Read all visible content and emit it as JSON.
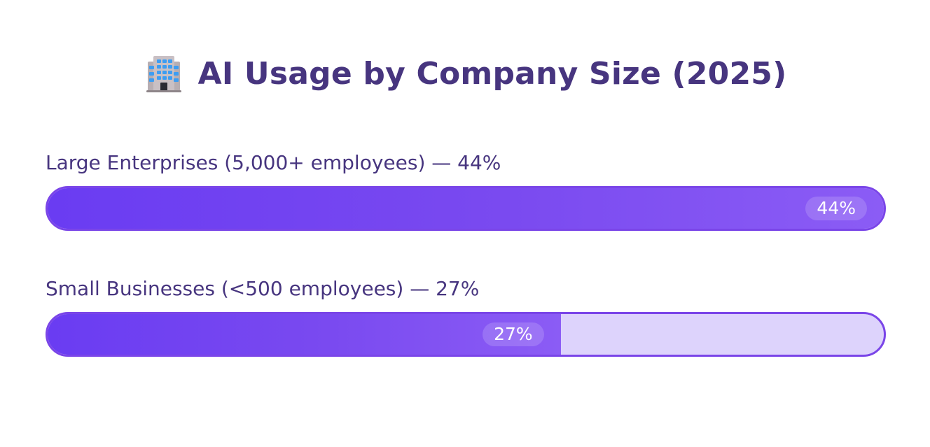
{
  "colors": {
    "title_text": "#47357f",
    "label_text": "#47357f",
    "bar_fill_start": "#6a3cf2",
    "bar_fill_end": "#8b5cf5",
    "bar_border": "#7a45e8",
    "track_background": "#ddd3fc",
    "value_text": "#ffffff"
  },
  "header": {
    "icon": "office-building-icon",
    "title": "AI Usage by Company Size (2025)"
  },
  "chart_data": {
    "type": "bar",
    "orientation": "horizontal",
    "title": "AI Usage by Company Size (2025)",
    "categories": [
      "Large Enterprises (5,000+ employees) — 44%",
      "Small Businesses (<500 employees) — 27%"
    ],
    "values": [
      44,
      27
    ],
    "value_labels": [
      "44%",
      "27%"
    ],
    "unit": "%",
    "xlim": [
      0,
      100
    ],
    "grid": false,
    "legend": "none"
  }
}
